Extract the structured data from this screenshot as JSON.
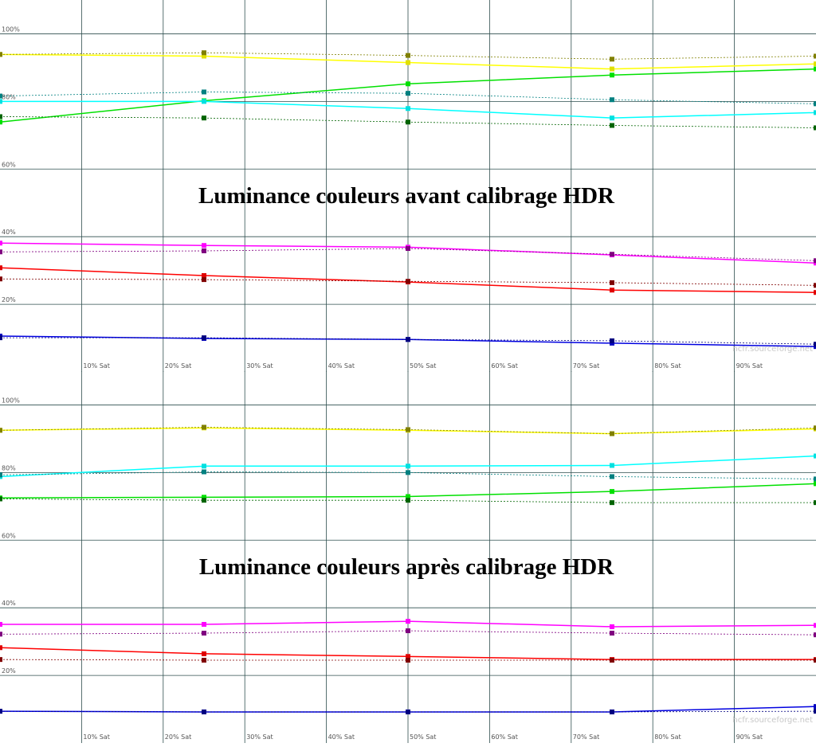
{
  "chart_data": [
    {
      "type": "line",
      "title": "Luminance couleurs avant calibrage HDR",
      "watermark": "hcfr.sourceforge.net",
      "x": [
        0,
        25,
        50,
        75,
        100
      ],
      "xlim": [
        0,
        100
      ],
      "xticks": [
        {
          "value": 10,
          "label": "10% Sat"
        },
        {
          "value": 20,
          "label": "20% Sat"
        },
        {
          "value": 30,
          "label": "30% Sat"
        },
        {
          "value": 40,
          "label": "40% Sat"
        },
        {
          "value": 50,
          "label": "50% Sat"
        },
        {
          "value": 60,
          "label": "60% Sat"
        },
        {
          "value": 70,
          "label": "70% Sat"
        },
        {
          "value": 80,
          "label": "80% Sat"
        },
        {
          "value": 90,
          "label": "90% Sat"
        }
      ],
      "ylim": [
        0,
        110
      ],
      "yticks": [
        {
          "value": 20,
          "label": "20%"
        },
        {
          "value": 40,
          "label": "40%"
        },
        {
          "value": 60,
          "label": "60%"
        },
        {
          "value": 80,
          "label": "80%"
        },
        {
          "value": 100,
          "label": "100%"
        }
      ],
      "grid": true,
      "series": [
        {
          "color": "#ffff00",
          "marker": "#e0e000",
          "dashed": false,
          "values": [
            93.9,
            93.4,
            91.5,
            89.6,
            91.1
          ]
        },
        {
          "color": "#808000",
          "marker": "#808000",
          "dashed": true,
          "values": [
            93.9,
            94.4,
            93.6,
            92.5,
            93.4
          ]
        },
        {
          "color": "#00e000",
          "marker": "#00e000",
          "dashed": false,
          "values": [
            73.9,
            80.2,
            85.2,
            87.8,
            89.6
          ]
        },
        {
          "color": "#006400",
          "marker": "#006400",
          "dashed": true,
          "values": [
            75.5,
            75.1,
            73.9,
            72.9,
            72.2
          ]
        },
        {
          "color": "#00ffff",
          "marker": "#00e0e0",
          "dashed": false,
          "values": [
            80,
            80,
            77.9,
            75.1,
            76.7
          ]
        },
        {
          "color": "#008080",
          "marker": "#008080",
          "dashed": true,
          "values": [
            81.6,
            82.8,
            82.4,
            80.5,
            79.3
          ]
        },
        {
          "color": "#ff00ff",
          "marker": "#ff00ff",
          "dashed": false,
          "values": [
            38.1,
            37.4,
            36.9,
            34.6,
            32.2
          ]
        },
        {
          "color": "#800080",
          "marker": "#800080",
          "dashed": true,
          "values": [
            35.5,
            35.8,
            36.5,
            34.8,
            32.9
          ]
        },
        {
          "color": "#ff0000",
          "marker": "#e00000",
          "dashed": false,
          "values": [
            30.8,
            28.5,
            26.6,
            24.2,
            23.5
          ]
        },
        {
          "color": "#800000",
          "marker": "#800000",
          "dashed": true,
          "values": [
            27.5,
            27.3,
            26.8,
            26.4,
            25.6
          ]
        },
        {
          "color": "#0000e0",
          "marker": "#0000c0",
          "dashed": false,
          "values": [
            10.6,
            9.9,
            9.6,
            8.5,
            7.5
          ]
        },
        {
          "color": "#000080",
          "marker": "#000080",
          "dashed": true,
          "values": [
            10.1,
            10.1,
            9.6,
            9.2,
            8.2
          ]
        }
      ]
    },
    {
      "type": "line",
      "title": "Luminance couleurs après calibrage HDR",
      "watermark": "hcfr.sourceforge.net",
      "x": [
        0,
        25,
        50,
        75,
        100
      ],
      "xlim": [
        0,
        100
      ],
      "xticks": [
        {
          "value": 10,
          "label": "10% Sat"
        },
        {
          "value": 20,
          "label": "20% Sat"
        },
        {
          "value": 30,
          "label": "30% Sat"
        },
        {
          "value": 40,
          "label": "40% Sat"
        },
        {
          "value": 50,
          "label": "50% Sat"
        },
        {
          "value": 60,
          "label": "60% Sat"
        },
        {
          "value": 70,
          "label": "70% Sat"
        },
        {
          "value": 80,
          "label": "80% Sat"
        },
        {
          "value": 90,
          "label": "90% Sat"
        }
      ],
      "ylim": [
        0,
        110
      ],
      "yticks": [
        {
          "value": 20,
          "label": "20%"
        },
        {
          "value": 40,
          "label": "40%"
        },
        {
          "value": 60,
          "label": "60%"
        },
        {
          "value": 80,
          "label": "80%"
        },
        {
          "value": 100,
          "label": "100%"
        }
      ],
      "grid": true,
      "series": [
        {
          "color": "#ffff00",
          "marker": "#e0e000",
          "dashed": false,
          "values": [
            92.5,
            93.2,
            92.5,
            91.5,
            92.9
          ]
        },
        {
          "color": "#808000",
          "marker": "#808000",
          "dashed": true,
          "values": [
            92.5,
            93.4,
            92.7,
            91.5,
            93.2
          ]
        },
        {
          "color": "#00ffff",
          "marker": "#00e0e0",
          "dashed": false,
          "values": [
            78.8,
            81.9,
            81.9,
            82.1,
            84.9
          ]
        },
        {
          "color": "#008080",
          "marker": "#008080",
          "dashed": true,
          "values": [
            79.3,
            80.2,
            80,
            78.8,
            78.1
          ]
        },
        {
          "color": "#00e000",
          "marker": "#00e000",
          "dashed": false,
          "values": [
            72.5,
            72.7,
            72.9,
            74.4,
            76.7
          ]
        },
        {
          "color": "#006400",
          "marker": "#006400",
          "dashed": true,
          "values": [
            72.2,
            71.8,
            71.8,
            71.1,
            71.1
          ]
        },
        {
          "color": "#ff00ff",
          "marker": "#ff00ff",
          "dashed": false,
          "values": [
            35.1,
            35.1,
            36,
            34.4,
            34.8
          ]
        },
        {
          "color": "#800080",
          "marker": "#800080",
          "dashed": true,
          "values": [
            32.2,
            32.5,
            33.2,
            32.5,
            32
          ]
        },
        {
          "color": "#ff0000",
          "marker": "#e00000",
          "dashed": false,
          "values": [
            28.2,
            26.4,
            25.6,
            24.7,
            24.7
          ]
        },
        {
          "color": "#800000",
          "marker": "#800000",
          "dashed": true,
          "values": [
            24.7,
            24.5,
            24.5,
            24.5,
            24.5
          ]
        },
        {
          "color": "#0000e0",
          "marker": "#0000c0",
          "dashed": false,
          "values": [
            9.4,
            9.2,
            9.2,
            9.2,
            10.8
          ]
        },
        {
          "color": "#000080",
          "marker": "#000080",
          "dashed": true,
          "values": [
            9.4,
            9.2,
            9.2,
            9.2,
            9.4
          ]
        }
      ]
    }
  ]
}
